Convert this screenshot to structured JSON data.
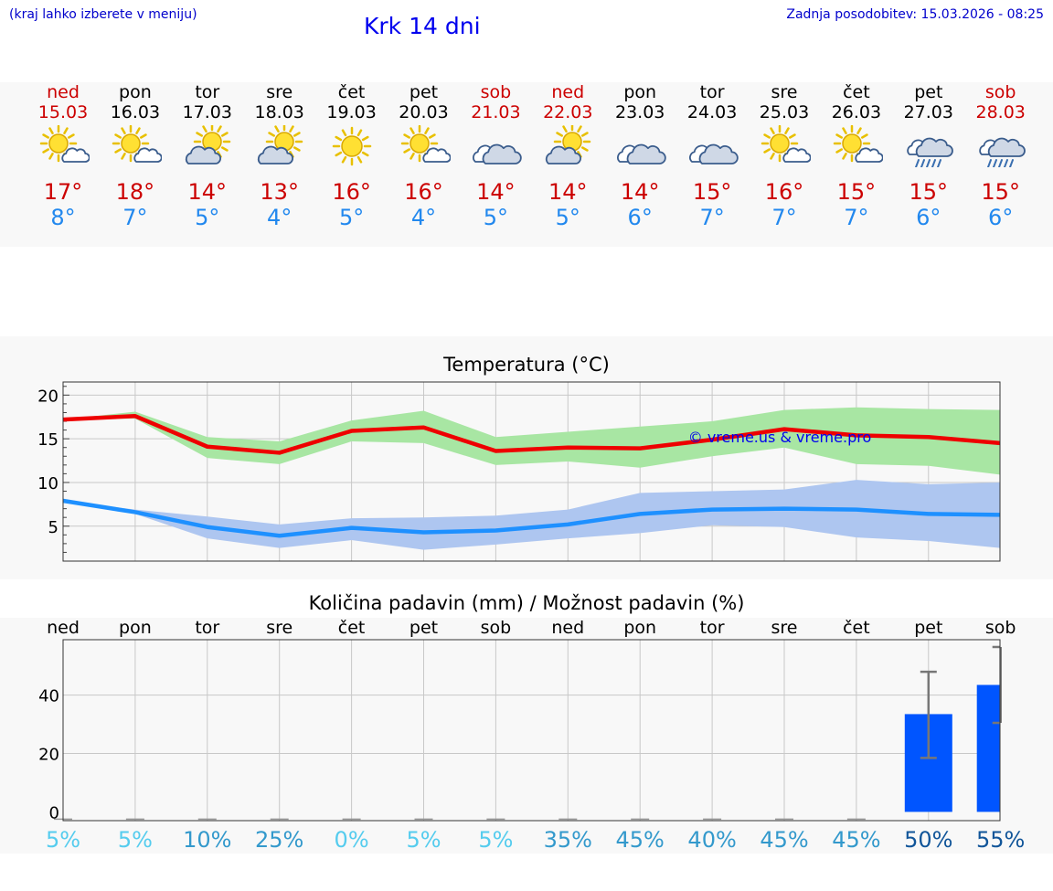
{
  "header": {
    "hint": "(kraj lahko izberete v meniju)",
    "title": "Krk 14 dni",
    "updated": "Zadnja posodobitev: 15.03.2026 - 08:25"
  },
  "colors": {
    "weekday": "#000000",
    "weekend": "#cc0000",
    "max_temp": "#cc0000",
    "min_temp": "#2288ee",
    "max_line": "#ee0000",
    "max_band": "#a8e6a3",
    "min_line": "#1e90ff",
    "min_band": "#aec6f0",
    "precip_bar": "#0055ff",
    "watermark": "#0000ee"
  },
  "days": [
    {
      "name": "ned",
      "date": "15.03",
      "weekend": true,
      "icon": "sun-cloud-icon",
      "max": "17°",
      "min": "8°"
    },
    {
      "name": "pon",
      "date": "16.03",
      "weekend": false,
      "icon": "sun-cloud-icon",
      "max": "18°",
      "min": "7°"
    },
    {
      "name": "tor",
      "date": "17.03",
      "weekend": false,
      "icon": "sun-behind-cloud-icon",
      "max": "14°",
      "min": "5°"
    },
    {
      "name": "sre",
      "date": "18.03",
      "weekend": false,
      "icon": "sun-behind-cloud-icon",
      "max": "13°",
      "min": "4°"
    },
    {
      "name": "čet",
      "date": "19.03",
      "weekend": false,
      "icon": "sun-icon",
      "max": "16°",
      "min": "5°"
    },
    {
      "name": "pet",
      "date": "20.03",
      "weekend": false,
      "icon": "sun-cloud-icon",
      "max": "16°",
      "min": "4°"
    },
    {
      "name": "sob",
      "date": "21.03",
      "weekend": true,
      "icon": "cloud-icon",
      "max": "14°",
      "min": "5°"
    },
    {
      "name": "ned",
      "date": "22.03",
      "weekend": true,
      "icon": "sun-behind-cloud-icon",
      "max": "14°",
      "min": "5°"
    },
    {
      "name": "pon",
      "date": "23.03",
      "weekend": false,
      "icon": "cloud-icon",
      "max": "14°",
      "min": "6°"
    },
    {
      "name": "tor",
      "date": "24.03",
      "weekend": false,
      "icon": "cloud-icon",
      "max": "15°",
      "min": "7°"
    },
    {
      "name": "sre",
      "date": "25.03",
      "weekend": false,
      "icon": "sun-cloud-icon",
      "max": "16°",
      "min": "7°"
    },
    {
      "name": "čet",
      "date": "26.03",
      "weekend": false,
      "icon": "sun-cloud-icon",
      "max": "15°",
      "min": "7°"
    },
    {
      "name": "pet",
      "date": "27.03",
      "weekend": false,
      "icon": "rain-cloud-icon",
      "max": "15°",
      "min": "6°"
    },
    {
      "name": "sob",
      "date": "28.03",
      "weekend": true,
      "icon": "rain-cloud-icon",
      "max": "15°",
      "min": "6°"
    }
  ],
  "chart_data": [
    {
      "type": "line",
      "title": "Temperatura (°C)",
      "watermark": "© vreme.us & vreme.pro",
      "ylim": [
        1,
        21.5
      ],
      "yticks": [
        5,
        10,
        15,
        20
      ],
      "grid": true,
      "series": [
        {
          "name": "max",
          "values": [
            17.2,
            17.6,
            14.1,
            13.4,
            15.9,
            16.3,
            13.6,
            14.0,
            13.9,
            14.9,
            16.1,
            15.4,
            15.2,
            14.5
          ]
        },
        {
          "name": "max_low",
          "values": [
            17.2,
            17.3,
            12.8,
            12.1,
            14.7,
            14.5,
            12.0,
            12.4,
            11.7,
            13.0,
            14.0,
            12.1,
            11.9,
            10.9
          ]
        },
        {
          "name": "max_high",
          "values": [
            17.2,
            18.1,
            15.2,
            14.7,
            17.1,
            18.2,
            15.2,
            15.8,
            16.4,
            17.0,
            18.3,
            18.6,
            18.4,
            18.3
          ]
        },
        {
          "name": "min",
          "values": [
            7.9,
            6.6,
            4.9,
            3.9,
            4.8,
            4.3,
            4.5,
            5.2,
            6.4,
            6.9,
            7.0,
            6.9,
            6.4,
            6.3
          ]
        },
        {
          "name": "min_low",
          "values": [
            7.9,
            6.4,
            3.6,
            2.5,
            3.4,
            2.3,
            2.9,
            3.6,
            4.2,
            5.1,
            4.9,
            3.7,
            3.3,
            2.5
          ]
        },
        {
          "name": "min_high",
          "values": [
            7.9,
            6.9,
            6.1,
            5.2,
            5.9,
            6.0,
            6.2,
            6.9,
            8.8,
            9.0,
            9.2,
            10.3,
            9.8,
            10.0
          ]
        }
      ]
    },
    {
      "type": "bar",
      "title": "Količina padavin (mm) / Možnost padavin (%)",
      "categories": [
        "ned",
        "pon",
        "tor",
        "sre",
        "čet",
        "pet",
        "sob",
        "ned",
        "pon",
        "tor",
        "sre",
        "čet",
        "pet",
        "sob"
      ],
      "values": [
        0,
        0,
        0,
        0,
        0,
        0,
        0,
        0,
        0,
        0,
        0,
        0,
        33.5,
        43.5
      ],
      "err_low": [
        0,
        0,
        0,
        0,
        0,
        0,
        0,
        0,
        0,
        0,
        0,
        0,
        18.5,
        30.5
      ],
      "err_high": [
        0,
        0,
        0,
        0,
        0,
        0,
        0,
        0,
        0,
        0,
        0,
        0,
        48.0,
        56.5
      ],
      "ylim": [
        -3,
        59
      ],
      "yticks": [
        0,
        20,
        40
      ],
      "probability": [
        "5%",
        "5%",
        "10%",
        "25%",
        "0%",
        "5%",
        "5%",
        "35%",
        "45%",
        "40%",
        "45%",
        "45%",
        "50%",
        "55%"
      ],
      "probability_colors": [
        "#55ccee",
        "#55ccee",
        "#3399cc",
        "#3399cc",
        "#55ccee",
        "#55ccee",
        "#55ccee",
        "#3399cc",
        "#3399cc",
        "#3399cc",
        "#3399cc",
        "#3399cc",
        "#115599",
        "#115599"
      ]
    }
  ]
}
